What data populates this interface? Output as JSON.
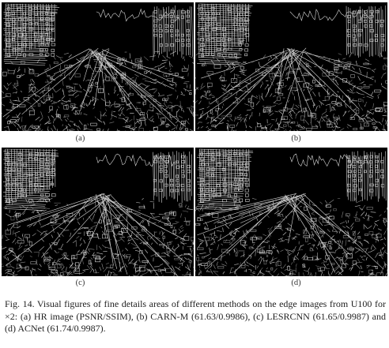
{
  "figure": {
    "panels": [
      {
        "id": "a",
        "label": "(a)",
        "method": "HR image"
      },
      {
        "id": "b",
        "label": "(b)",
        "method": "CARN-M"
      },
      {
        "id": "c",
        "label": "(c)",
        "method": "LESRCNN"
      },
      {
        "id": "d",
        "label": "(d)",
        "method": "ACNet"
      }
    ],
    "caption": "Fig. 14.  Visual figures of fine details areas of different methods on the edge images from U100 for ×2: (a) HR image (PSNR/SSIM), (b) CARN-M (61.63/0.9986), (c) LESRCNN (61.65/0.9987) and (d) ACNet (61.74/0.9987)."
  }
}
